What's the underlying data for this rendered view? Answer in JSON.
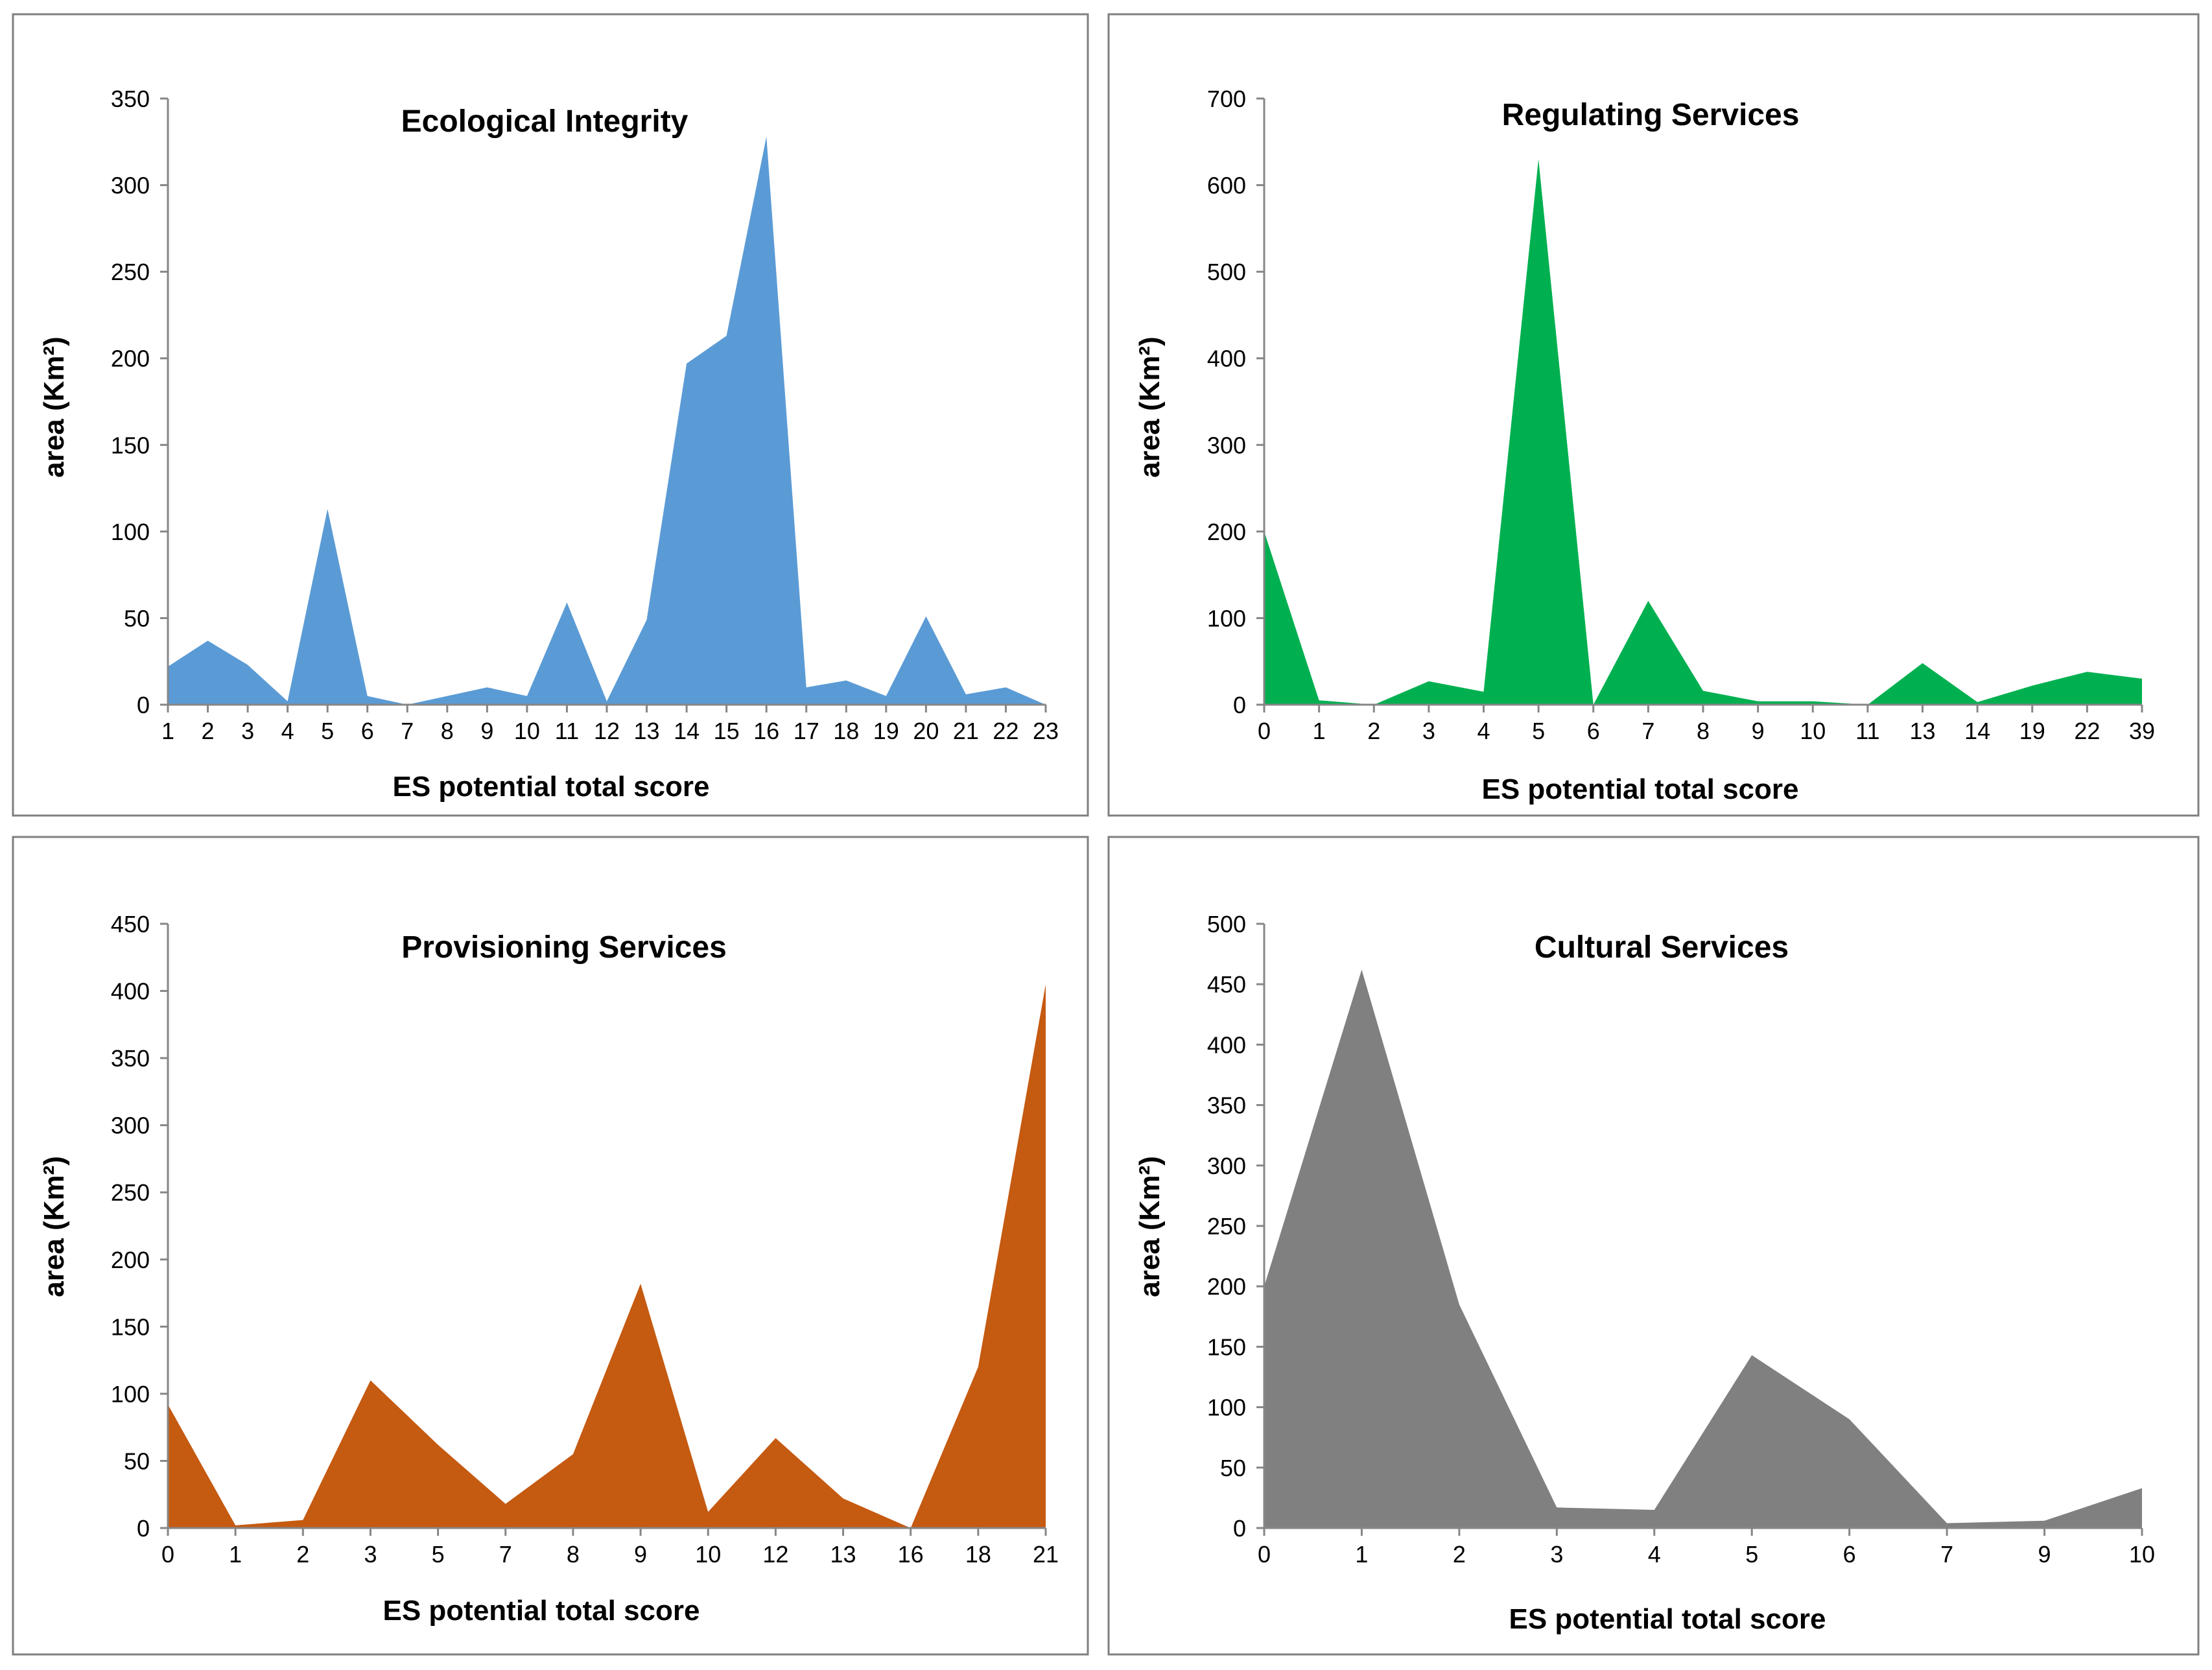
{
  "chart_data": [
    {
      "type": "area",
      "title": "Ecological Integrity",
      "xlabel": "ES potential  total score",
      "ylabel": "area (Km²)",
      "ylim": [
        0,
        350
      ],
      "yticks": [
        0,
        50,
        100,
        150,
        200,
        250,
        300,
        350
      ],
      "color": "#5b9bd5",
      "categories": [
        "1",
        "2",
        "3",
        "4",
        "5",
        "6",
        "7",
        "8",
        "9",
        "10",
        "11",
        "12",
        "13",
        "14",
        "15",
        "16",
        "17",
        "18",
        "19",
        "20",
        "21",
        "22",
        "23"
      ],
      "values": [
        22,
        37,
        23,
        2,
        113,
        5,
        0,
        5,
        10,
        5,
        59,
        2,
        49,
        197,
        213,
        328,
        10,
        14,
        5,
        51,
        6,
        10,
        0
      ]
    },
    {
      "type": "area",
      "title": "Regulating Services",
      "xlabel": "ES potential total score",
      "ylabel": "area (Km²)",
      "ylim": [
        0,
        700
      ],
      "yticks": [
        0,
        100,
        200,
        300,
        400,
        500,
        600,
        700
      ],
      "color": "#00b050",
      "categories": [
        "0",
        "1",
        "2",
        "3",
        "4",
        "5",
        "6",
        "7",
        "8",
        "9",
        "10",
        "11",
        "13",
        "14",
        "19",
        "22",
        "39"
      ],
      "values": [
        200,
        5,
        0,
        27,
        15,
        630,
        0,
        120,
        16,
        4,
        4,
        0,
        48,
        3,
        22,
        38,
        30
      ]
    },
    {
      "type": "area",
      "title": "Provisioning Services",
      "xlabel": "ES potential total score",
      "ylabel": "area (Km²)",
      "ylim": [
        0,
        450
      ],
      "yticks": [
        0,
        50,
        100,
        150,
        200,
        250,
        300,
        350,
        400,
        450
      ],
      "color": "#c55a11",
      "categories": [
        "0",
        "1",
        "2",
        "3",
        "5",
        "7",
        "8",
        "9",
        "10",
        "12",
        "13",
        "16",
        "18",
        "21"
      ],
      "values": [
        92,
        2,
        6,
        110,
        62,
        18,
        55,
        182,
        12,
        67,
        22,
        0,
        120,
        405
      ]
    },
    {
      "type": "area",
      "title": "Cultural Services",
      "xlabel": "ES potential total score",
      "ylabel": "area (Km²)",
      "ylim": [
        0,
        500
      ],
      "yticks": [
        0,
        50,
        100,
        150,
        200,
        250,
        300,
        350,
        400,
        450,
        500
      ],
      "color": "#808080",
      "categories": [
        "0",
        "1",
        "2",
        "3",
        "4",
        "5",
        "6",
        "7",
        "9",
        "10"
      ],
      "values": [
        200,
        462,
        185,
        17,
        15,
        143,
        90,
        4,
        6,
        33
      ]
    }
  ]
}
